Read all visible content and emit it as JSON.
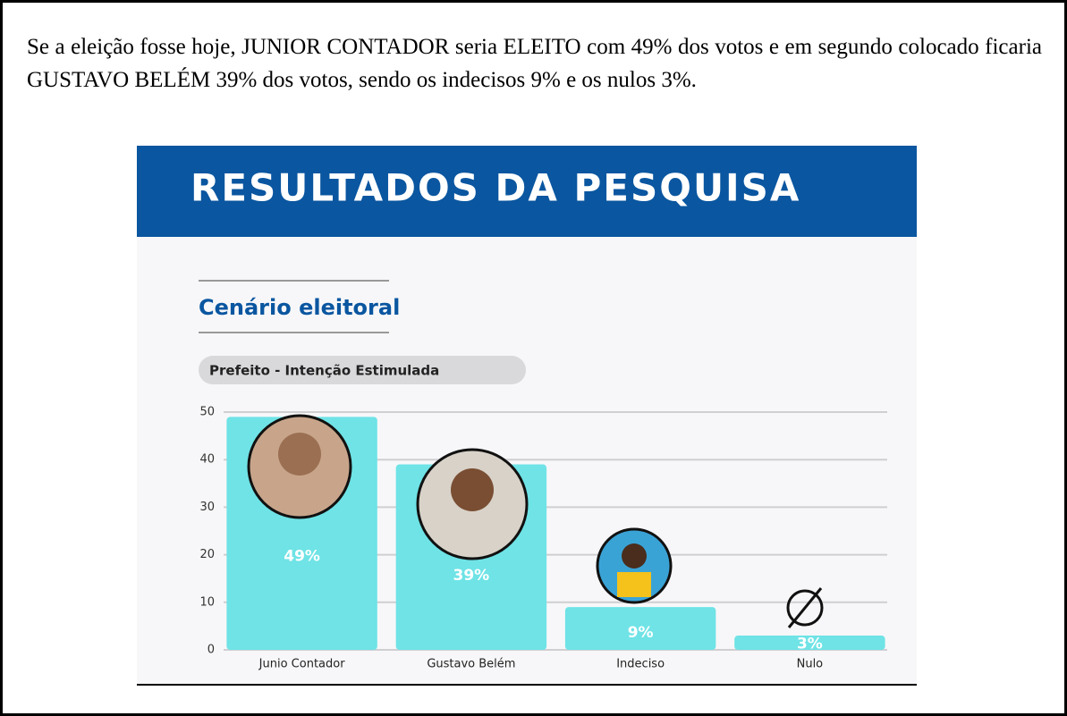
{
  "paragraph": "Se a eleição fosse hoje, JUNIOR CONTADOR seria ELEITO com 49% dos votos e em segundo colocado ficaria GUSTAVO BELÉM 39% dos votos, sendo os indecisos 9% e os nulos 3%.",
  "chart_data": {
    "type": "bar",
    "header": "RESULTADOS DA PESQUISA",
    "title": "Cenário eleitoral",
    "subtitle": "Prefeito - Intenção Estimulada",
    "categories": [
      "Junio Contador",
      "Gustavo Belém",
      "Indeciso",
      "Nulo"
    ],
    "values": [
      49,
      39,
      9,
      3
    ],
    "value_labels": [
      "49%",
      "39%",
      "9%",
      "3%"
    ],
    "color": "#6fe3e6",
    "ylim": [
      0,
      50
    ],
    "yticks": [
      0,
      10,
      20,
      30,
      40,
      50
    ],
    "grid": true
  }
}
